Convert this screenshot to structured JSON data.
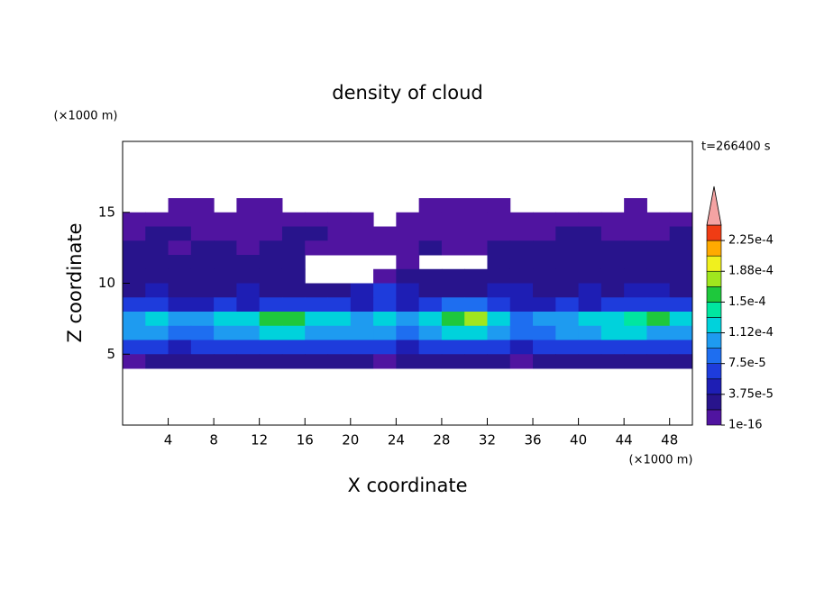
{
  "chart_data": {
    "type": "contour",
    "title": "density of cloud",
    "xlabel": "X coordinate",
    "ylabel": "Z coordinate",
    "x_unit": "(×1000 m)",
    "y_unit": "(×1000 m)",
    "time_label": "t=266400 s",
    "xlim": [
      0,
      50
    ],
    "ylim": [
      0,
      20
    ],
    "xticks": [
      4,
      8,
      12,
      16,
      20,
      24,
      28,
      32,
      36,
      40,
      44,
      48
    ],
    "yticks": [
      5,
      10,
      15
    ],
    "x": [
      1,
      3,
      5,
      7,
      9,
      11,
      13,
      15,
      17,
      19,
      21,
      23,
      25,
      27,
      29,
      31,
      33,
      35,
      37,
      39,
      41,
      43,
      45,
      47,
      49
    ],
    "z": [
      15.5,
      14.5,
      13.5,
      12.5,
      11.5,
      10.5,
      9.5,
      8.5,
      7.5,
      6.5,
      5.5,
      4.5
    ],
    "field": [
      [
        null,
        null,
        1e-06,
        1e-06,
        null,
        1e-06,
        1e-06,
        null,
        null,
        null,
        null,
        null,
        null,
        1e-06,
        1e-06,
        1e-06,
        1e-06,
        null,
        null,
        null,
        null,
        null,
        1e-06,
        null,
        null
      ],
      [
        5e-06,
        5e-06,
        5e-06,
        5e-06,
        5e-06,
        5e-06,
        5e-06,
        5e-06,
        5e-06,
        5e-06,
        5e-06,
        null,
        5e-06,
        5e-06,
        5e-06,
        5e-06,
        5e-06,
        5e-06,
        5e-06,
        5e-06,
        5e-06,
        5e-06,
        5e-06,
        5e-06,
        5e-06
      ],
      [
        1e-05,
        2e-05,
        2e-05,
        1e-05,
        1e-05,
        1e-05,
        1e-05,
        2e-05,
        2e-05,
        1e-05,
        1e-05,
        1e-05,
        1e-05,
        1e-05,
        1e-05,
        1e-05,
        1e-05,
        1e-05,
        1e-05,
        2e-05,
        2e-05,
        1e-05,
        1e-05,
        1e-05,
        2e-05
      ],
      [
        2e-05,
        2e-05,
        1e-05,
        2e-05,
        2e-05,
        1e-05,
        2e-05,
        2e-05,
        1e-05,
        1e-05,
        1e-05,
        1e-05,
        1e-05,
        2e-05,
        1e-05,
        1e-05,
        2e-05,
        2e-05,
        2e-05,
        2e-05,
        2e-05,
        2e-05,
        2e-05,
        2e-05,
        2e-05
      ],
      [
        2e-05,
        2e-05,
        2e-05,
        2e-05,
        2e-05,
        2e-05,
        2e-05,
        2e-05,
        null,
        null,
        null,
        null,
        1e-05,
        null,
        null,
        null,
        2e-05,
        2e-05,
        2e-05,
        2e-05,
        2e-05,
        2e-05,
        2e-05,
        2e-05,
        2e-05
      ],
      [
        2.5e-05,
        2.5e-05,
        2.5e-05,
        2.5e-05,
        2.5e-05,
        2.5e-05,
        2.5e-05,
        2.5e-05,
        null,
        null,
        null,
        1e-05,
        2e-05,
        2e-05,
        2.5e-05,
        2.5e-05,
        2.5e-05,
        2.5e-05,
        2.5e-05,
        2.5e-05,
        2.5e-05,
        2.5e-05,
        2.5e-05,
        2.5e-05,
        2.5e-05
      ],
      [
        3e-05,
        4e-05,
        3e-05,
        3e-05,
        3e-05,
        4e-05,
        3e-05,
        3e-05,
        3e-05,
        3e-05,
        4e-05,
        6e-05,
        4e-05,
        3e-05,
        3e-05,
        3e-05,
        4e-05,
        4e-05,
        3e-05,
        3e-05,
        4e-05,
        3e-05,
        4e-05,
        4e-05,
        3e-05
      ],
      [
        7e-05,
        6e-05,
        5e-05,
        5e-05,
        6e-05,
        5e-05,
        6e-05,
        7e-05,
        6e-05,
        6e-05,
        5e-05,
        6e-05,
        5e-05,
        6e-05,
        8e-05,
        8e-05,
        6e-05,
        5e-05,
        5e-05,
        6e-05,
        5e-05,
        6e-05,
        6e-05,
        7e-05,
        7e-05
      ],
      [
        0.00011,
        0.00012,
        0.0001,
        0.00011,
        0.00012,
        0.00013,
        0.00015,
        0.00016,
        0.00013,
        0.00012,
        0.00011,
        0.00012,
        0.0001,
        0.00013,
        0.00016,
        0.00017,
        0.00013,
        9e-05,
        0.0001,
        0.00011,
        0.00012,
        0.00013,
        0.00014,
        0.00015,
        0.00013
      ],
      [
        0.00011,
        0.0001,
        9e-05,
        8e-05,
        0.0001,
        0.00011,
        0.00012,
        0.00012,
        0.00011,
        0.0001,
        0.00011,
        0.0001,
        8e-05,
        0.00011,
        0.00012,
        0.00013,
        0.00011,
        8e-05,
        9e-05,
        0.0001,
        0.00011,
        0.00012,
        0.00012,
        0.00011,
        0.0001
      ],
      [
        6e-05,
        7e-05,
        5e-05,
        6e-05,
        7e-05,
        6e-05,
        7e-05,
        7e-05,
        6e-05,
        6e-05,
        7e-05,
        6e-05,
        5e-05,
        6e-05,
        7e-05,
        7e-05,
        6e-05,
        5e-05,
        6e-05,
        7e-05,
        6e-05,
        7e-05,
        6e-05,
        7e-05,
        6e-05
      ],
      [
        1e-05,
        2e-05,
        2e-05,
        2e-05,
        2e-05,
        2e-05,
        2e-05,
        2e-05,
        2e-05,
        2e-05,
        2e-05,
        1e-05,
        2e-05,
        2e-05,
        2e-05,
        2e-05,
        2e-05,
        1e-05,
        2e-05,
        2e-05,
        2e-05,
        2e-05,
        2e-05,
        2e-05,
        2e-05
      ]
    ],
    "levels": [
      1e-16,
      1.875e-05,
      3.75e-05,
      5.625e-05,
      7.5e-05,
      9.375e-05,
      0.0001125,
      0.00013125,
      0.00015,
      0.00016875,
      0.0001875,
      0.00020625,
      0.000225,
      0.00024375
    ],
    "colors": [
      "#5014a0",
      "#28148c",
      "#1e1eb4",
      "#1e3cdc",
      "#1e6ef0",
      "#1e9bf0",
      "#00d2dc",
      "#00e6a0",
      "#1ec83c",
      "#a0e61e",
      "#f0f01e",
      "#ffaa00",
      "#f03c14"
    ],
    "extend_color": "#f4a3a3",
    "cticks": [
      {
        "value": 1e-16,
        "label": "1e-16"
      },
      {
        "value": 3.75e-05,
        "label": "3.75e-5"
      },
      {
        "value": 7.5e-05,
        "label": "7.5e-5"
      },
      {
        "value": 0.0001125,
        "label": "1.12e-4"
      },
      {
        "value": 0.00015,
        "label": "1.5e-4"
      },
      {
        "value": 0.0001875,
        "label": "1.88e-4"
      },
      {
        "value": 0.000225,
        "label": "2.25e-4"
      }
    ]
  }
}
